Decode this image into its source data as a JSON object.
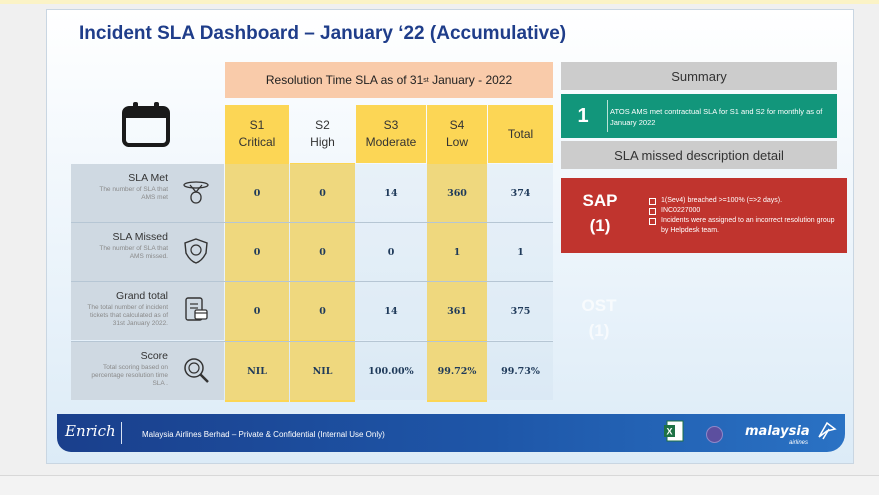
{
  "slide": {
    "title": "Incident SLA Dashboard – January ‘22 (Accumulative)"
  },
  "table": {
    "header_main": "Resolution Time SLA as of 31",
    "header_sup": "st",
    "header_tail": " January - 2022",
    "columns": [
      {
        "line1": "S1",
        "line2": "Critical"
      },
      {
        "line1": "S2",
        "line2": "High"
      },
      {
        "line1": "S3",
        "line2": "Moderate"
      },
      {
        "line1": "S4",
        "line2": "Low"
      },
      {
        "line1": "Total",
        "line2": ""
      }
    ],
    "rows": [
      {
        "label": "SLA Met",
        "desc": "The number of SLA that AMS met",
        "icon": "handshake-icon",
        "values": [
          "0",
          "0",
          "14",
          "360",
          "374"
        ]
      },
      {
        "label": "SLA Missed",
        "desc": "The number of SLA that AMS missed.",
        "icon": "shield-icon",
        "values": [
          "0",
          "0",
          "0",
          "1",
          "1"
        ]
      },
      {
        "label": "Grand total",
        "desc": "The total number of incident tickets that calculated as of 31st January 2022.",
        "icon": "document-icon",
        "values": [
          "0",
          "0",
          "14",
          "361",
          "375"
        ]
      },
      {
        "label": "Score",
        "desc": "Total scoring based on percentage resolution time SLA .",
        "icon": "magnifier-icon",
        "values": [
          "NIL",
          "NIL",
          "100.00%",
          "99.72%",
          "99.73%"
        ]
      }
    ]
  },
  "summary": {
    "title": "Summary",
    "item_number": "1",
    "item_text": "ATOS AMS met contractual SLA for S1 and S2 for monthly as of January 2022",
    "missed_title": "SLA missed description detail",
    "sap_line1": "SAP",
    "sap_line2": "(1)",
    "sap_bullets": [
      "1(Sev4) breached >=100% (=>2 days).",
      "INC0227000",
      "Incidents were assigned to an incorrect resolution group by Helpdesk team."
    ],
    "ost_line1": "OST",
    "ost_line2": "(1)"
  },
  "footer": {
    "enrich": "Enrich",
    "confidential": "Malaysia Airlines Berhad – Private & Confidential (Internal Use Only)",
    "airline": "malaysia",
    "airline_sub": "airlines"
  },
  "colors": {
    "title_blue": "#1f3d8a",
    "yellow": "#fcd655",
    "peach": "#f9cbaa",
    "green": "#12967b",
    "red": "#c0342e",
    "gray": "#cccccc",
    "footer_blue": "#1e56a8"
  }
}
